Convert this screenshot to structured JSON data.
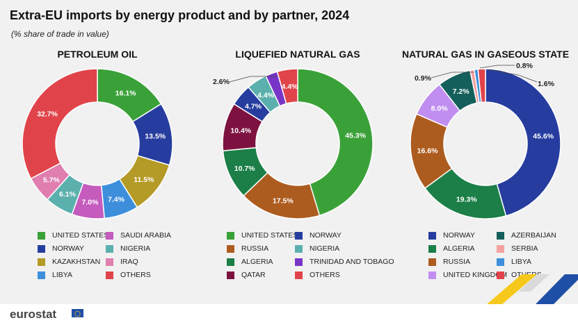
{
  "title": "Extra-EU imports by energy product and by partner, 2024",
  "subtitle": "(% share of trade in value)",
  "logo": {
    "text": "eurostat",
    "icon": "eu-flag-icon"
  },
  "colors": {
    "green": "#3aa139",
    "darkblue": "#263d9f",
    "olive": "#b49a26",
    "lightblue": "#3d8fdc",
    "magenta": "#c45bbd",
    "teal": "#5bb0ad",
    "pink": "#df7eaf",
    "red": "#e0444a",
    "brown": "#ad5c1f",
    "darkgreen": "#1b7f47",
    "maroon": "#7d1240",
    "purple": "#7834c7",
    "lavender": "#c08ef0",
    "darkteal": "#145f5b",
    "salmon": "#f4a2a0"
  },
  "chart_data": [
    {
      "type": "pie",
      "title": "PETROLEUM OIL",
      "slices": [
        {
          "label": "UNITED STATES",
          "value": 16.1,
          "color": "#3aa139"
        },
        {
          "label": "NORWAY",
          "value": 13.5,
          "color": "#263d9f"
        },
        {
          "label": "KAZAKHSTAN",
          "value": 11.5,
          "color": "#b49a26"
        },
        {
          "label": "LIBYA",
          "value": 7.4,
          "color": "#3d8fdc"
        },
        {
          "label": "SAUDI ARABIA",
          "value": 7.0,
          "color": "#c45bbd"
        },
        {
          "label": "NIGERIA",
          "value": 6.1,
          "color": "#5bb0ad"
        },
        {
          "label": "IRAQ",
          "value": 5.7,
          "color": "#df7eaf"
        },
        {
          "label": "OTHERS",
          "value": 32.7,
          "color": "#e0444a"
        }
      ],
      "value_labels": [
        "16.1%",
        "13.5%",
        "11.5%",
        "7.4%",
        "7.0%",
        "6.1%",
        "5.7%",
        "32.7%"
      ],
      "legend": [
        "UNITED STATES",
        "NORWAY",
        "KAZAKHSTAN",
        "LIBYA",
        "SAUDI ARABIA",
        "NIGERIA",
        "IRAQ",
        "OTHERS"
      ]
    },
    {
      "type": "pie",
      "title": "LIQUEFIED NATURAL GAS",
      "slices": [
        {
          "label": "UNITED STATES",
          "value": 45.3,
          "color": "#3aa139"
        },
        {
          "label": "RUSSIA",
          "value": 17.5,
          "color": "#ad5c1f"
        },
        {
          "label": "ALGERIA",
          "value": 10.7,
          "color": "#1b7f47"
        },
        {
          "label": "QATAR",
          "value": 10.4,
          "color": "#7d1240"
        },
        {
          "label": "NORWAY",
          "value": 4.7,
          "color": "#263d9f"
        },
        {
          "label": "NIGERIA",
          "value": 4.4,
          "color": "#5bb0ad"
        },
        {
          "label": "TRINIDAD AND TOBAGO",
          "value": 2.6,
          "color": "#7834c7"
        },
        {
          "label": "OTHERS",
          "value": 4.4,
          "color": "#e0444a"
        }
      ],
      "value_labels": [
        "45.3%",
        "17.5%",
        "10.7%",
        "10.4%",
        "4.7%",
        "4.4%",
        "2.6%",
        "4.4%"
      ],
      "legend": [
        "UNITED STATES",
        "RUSSIA",
        "ALGERIA",
        "QATAR",
        "NORWAY",
        "NIGERIA",
        "TRINIDAD AND TOBAGO",
        "OTHERS"
      ]
    },
    {
      "type": "pie",
      "title": "NATURAL GAS IN GASEOUS STATE",
      "slices": [
        {
          "label": "NORWAY",
          "value": 45.6,
          "color": "#263d9f"
        },
        {
          "label": "ALGERIA",
          "value": 19.3,
          "color": "#1b7f47"
        },
        {
          "label": "RUSSIA",
          "value": 16.6,
          "color": "#ad5c1f"
        },
        {
          "label": "UNITED KINGDOM",
          "value": 8.0,
          "color": "#c08ef0"
        },
        {
          "label": "AZERBAIJAN",
          "value": 7.2,
          "color": "#145f5b"
        },
        {
          "label": "SERBIA",
          "value": 0.9,
          "color": "#f4a2a0"
        },
        {
          "label": "LIBYA",
          "value": 0.8,
          "color": "#3d8fdc"
        },
        {
          "label": "OTHERS",
          "value": 1.6,
          "color": "#e0444a"
        }
      ],
      "value_labels": [
        "45.6%",
        "19.3%",
        "16.6%",
        "8.0%",
        "7.2%",
        "0.9%",
        "0.8%",
        "1.6%"
      ],
      "legend": [
        "NORWAY",
        "ALGERIA",
        "RUSSIA",
        "UNITED KINGDOM",
        "AZERBAIJAN",
        "SERBIA",
        "LIBYA",
        "OTHERS"
      ]
    }
  ]
}
